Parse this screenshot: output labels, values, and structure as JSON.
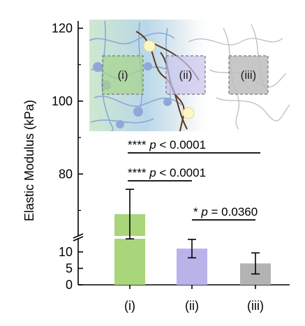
{
  "chart_data": {
    "type": "bar",
    "title": "",
    "xlabel": "",
    "ylabel": "Elastic Modulus (kPa)",
    "categories": [
      "(i)",
      "(ii)",
      "(iii)"
    ],
    "values": [
      69,
      11,
      6.5
    ],
    "errors": [
      6.8,
      2.8,
      3.2
    ],
    "colors": [
      "#a9d57b",
      "#b9b3ea",
      "#b3b3b3"
    ],
    "axis_break": true,
    "ylim_lower": [
      0,
      14
    ],
    "ylim_upper": [
      63,
      122
    ],
    "yticks_lower": [
      0,
      5,
      10
    ],
    "yticks_upper": [
      80,
      100,
      120
    ],
    "significance": [
      {
        "from": "(i)",
        "to": "(iii)",
        "stars": "****",
        "text": "p < 0.0001"
      },
      {
        "from": "(i)",
        "to": "(ii)",
        "stars": "****",
        "text": "p < 0.0001"
      },
      {
        "from": "(ii)",
        "to": "(iii)",
        "stars": "*",
        "text": "p = 0.0360"
      }
    ],
    "inset": {
      "labels": [
        "(i)",
        "(ii)",
        "(iii)"
      ]
    }
  }
}
